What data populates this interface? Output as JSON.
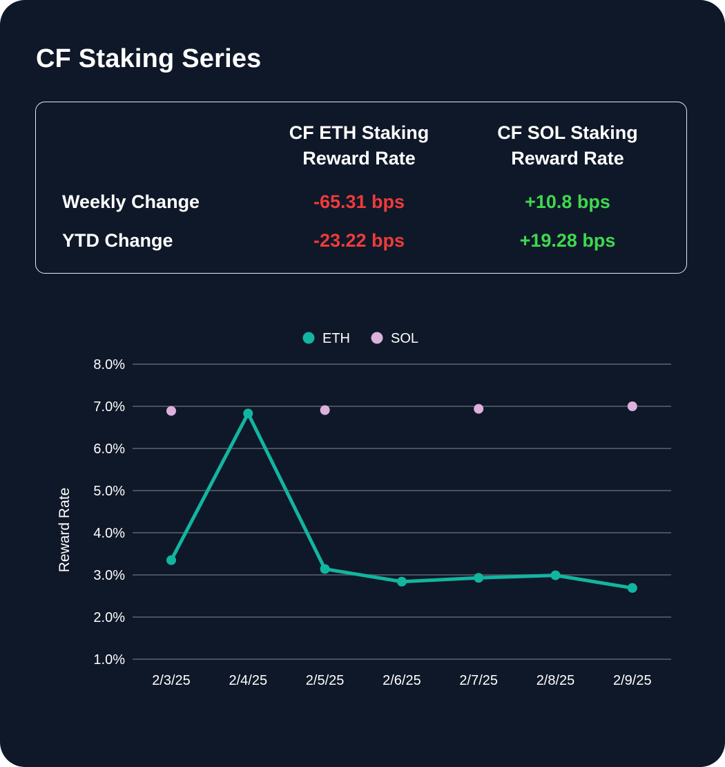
{
  "title": "CF Staking Series",
  "summary": {
    "columns": [
      "CF ETH Staking Reward Rate",
      "CF SOL Staking Reward Rate"
    ],
    "rows": [
      {
        "label": "Weekly Change",
        "eth": "-65.31 bps",
        "sol": "+10.8 bps"
      },
      {
        "label": "YTD Change",
        "eth": "-23.22 bps",
        "sol": "+19.28 bps"
      }
    ]
  },
  "colors": {
    "background": "#0f1828",
    "eth": "#12b5a0",
    "sol": "#dcb1dd",
    "negative": "#ee3b3b",
    "positive": "#3ed84f",
    "grid": "#4a505c"
  },
  "chart_data": {
    "type": "line",
    "categories": [
      "2/3/25",
      "2/4/25",
      "2/5/25",
      "2/6/25",
      "2/7/25",
      "2/8/25",
      "2/9/25"
    ],
    "series": [
      {
        "name": "ETH",
        "style": "line",
        "values": [
          3.35,
          6.83,
          3.14,
          2.84,
          2.93,
          2.99,
          2.69
        ]
      },
      {
        "name": "SOL",
        "style": "points",
        "values": [
          6.89,
          null,
          6.91,
          null,
          6.94,
          null,
          7.0
        ]
      }
    ],
    "ylabel": "Reward Rate",
    "xlabel": "",
    "ylim": [
      1,
      8
    ],
    "yticks": [
      "1.0%",
      "2.0%",
      "3.0%",
      "4.0%",
      "5.0%",
      "6.0%",
      "7.0%",
      "8.0%"
    ],
    "legend": [
      "ETH",
      "SOL"
    ],
    "legend_position": "top-center",
    "grid": true
  }
}
